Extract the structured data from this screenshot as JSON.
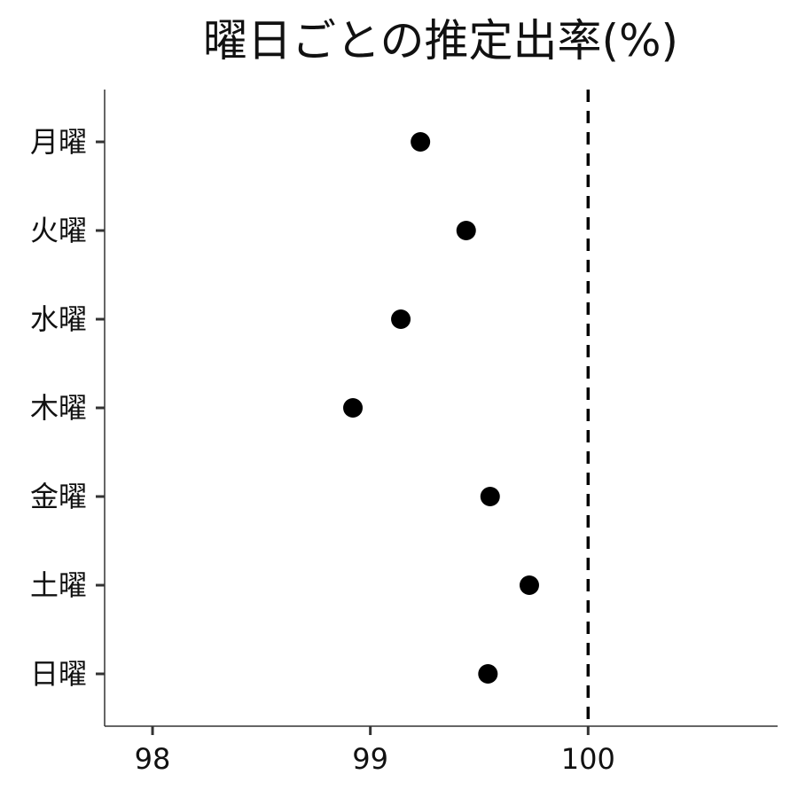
{
  "chart_data": {
    "type": "scatter",
    "title": "曜日ごとの推定出率(%)",
    "xlabel": "",
    "ylabel": "",
    "categories": [
      "月曜",
      "火曜",
      "水曜",
      "木曜",
      "金曜",
      "土曜",
      "日曜"
    ],
    "values": [
      99.23,
      99.44,
      99.14,
      98.92,
      99.55,
      99.73,
      99.54
    ],
    "x_ticks": [
      "98",
      "99",
      "100"
    ],
    "xlim": [
      97.78,
      100.87
    ],
    "reference_line": {
      "x": 100,
      "style": "dashed"
    },
    "grid": false,
    "legend": "none",
    "point_color": "#000000",
    "axis_color": "#333333"
  }
}
